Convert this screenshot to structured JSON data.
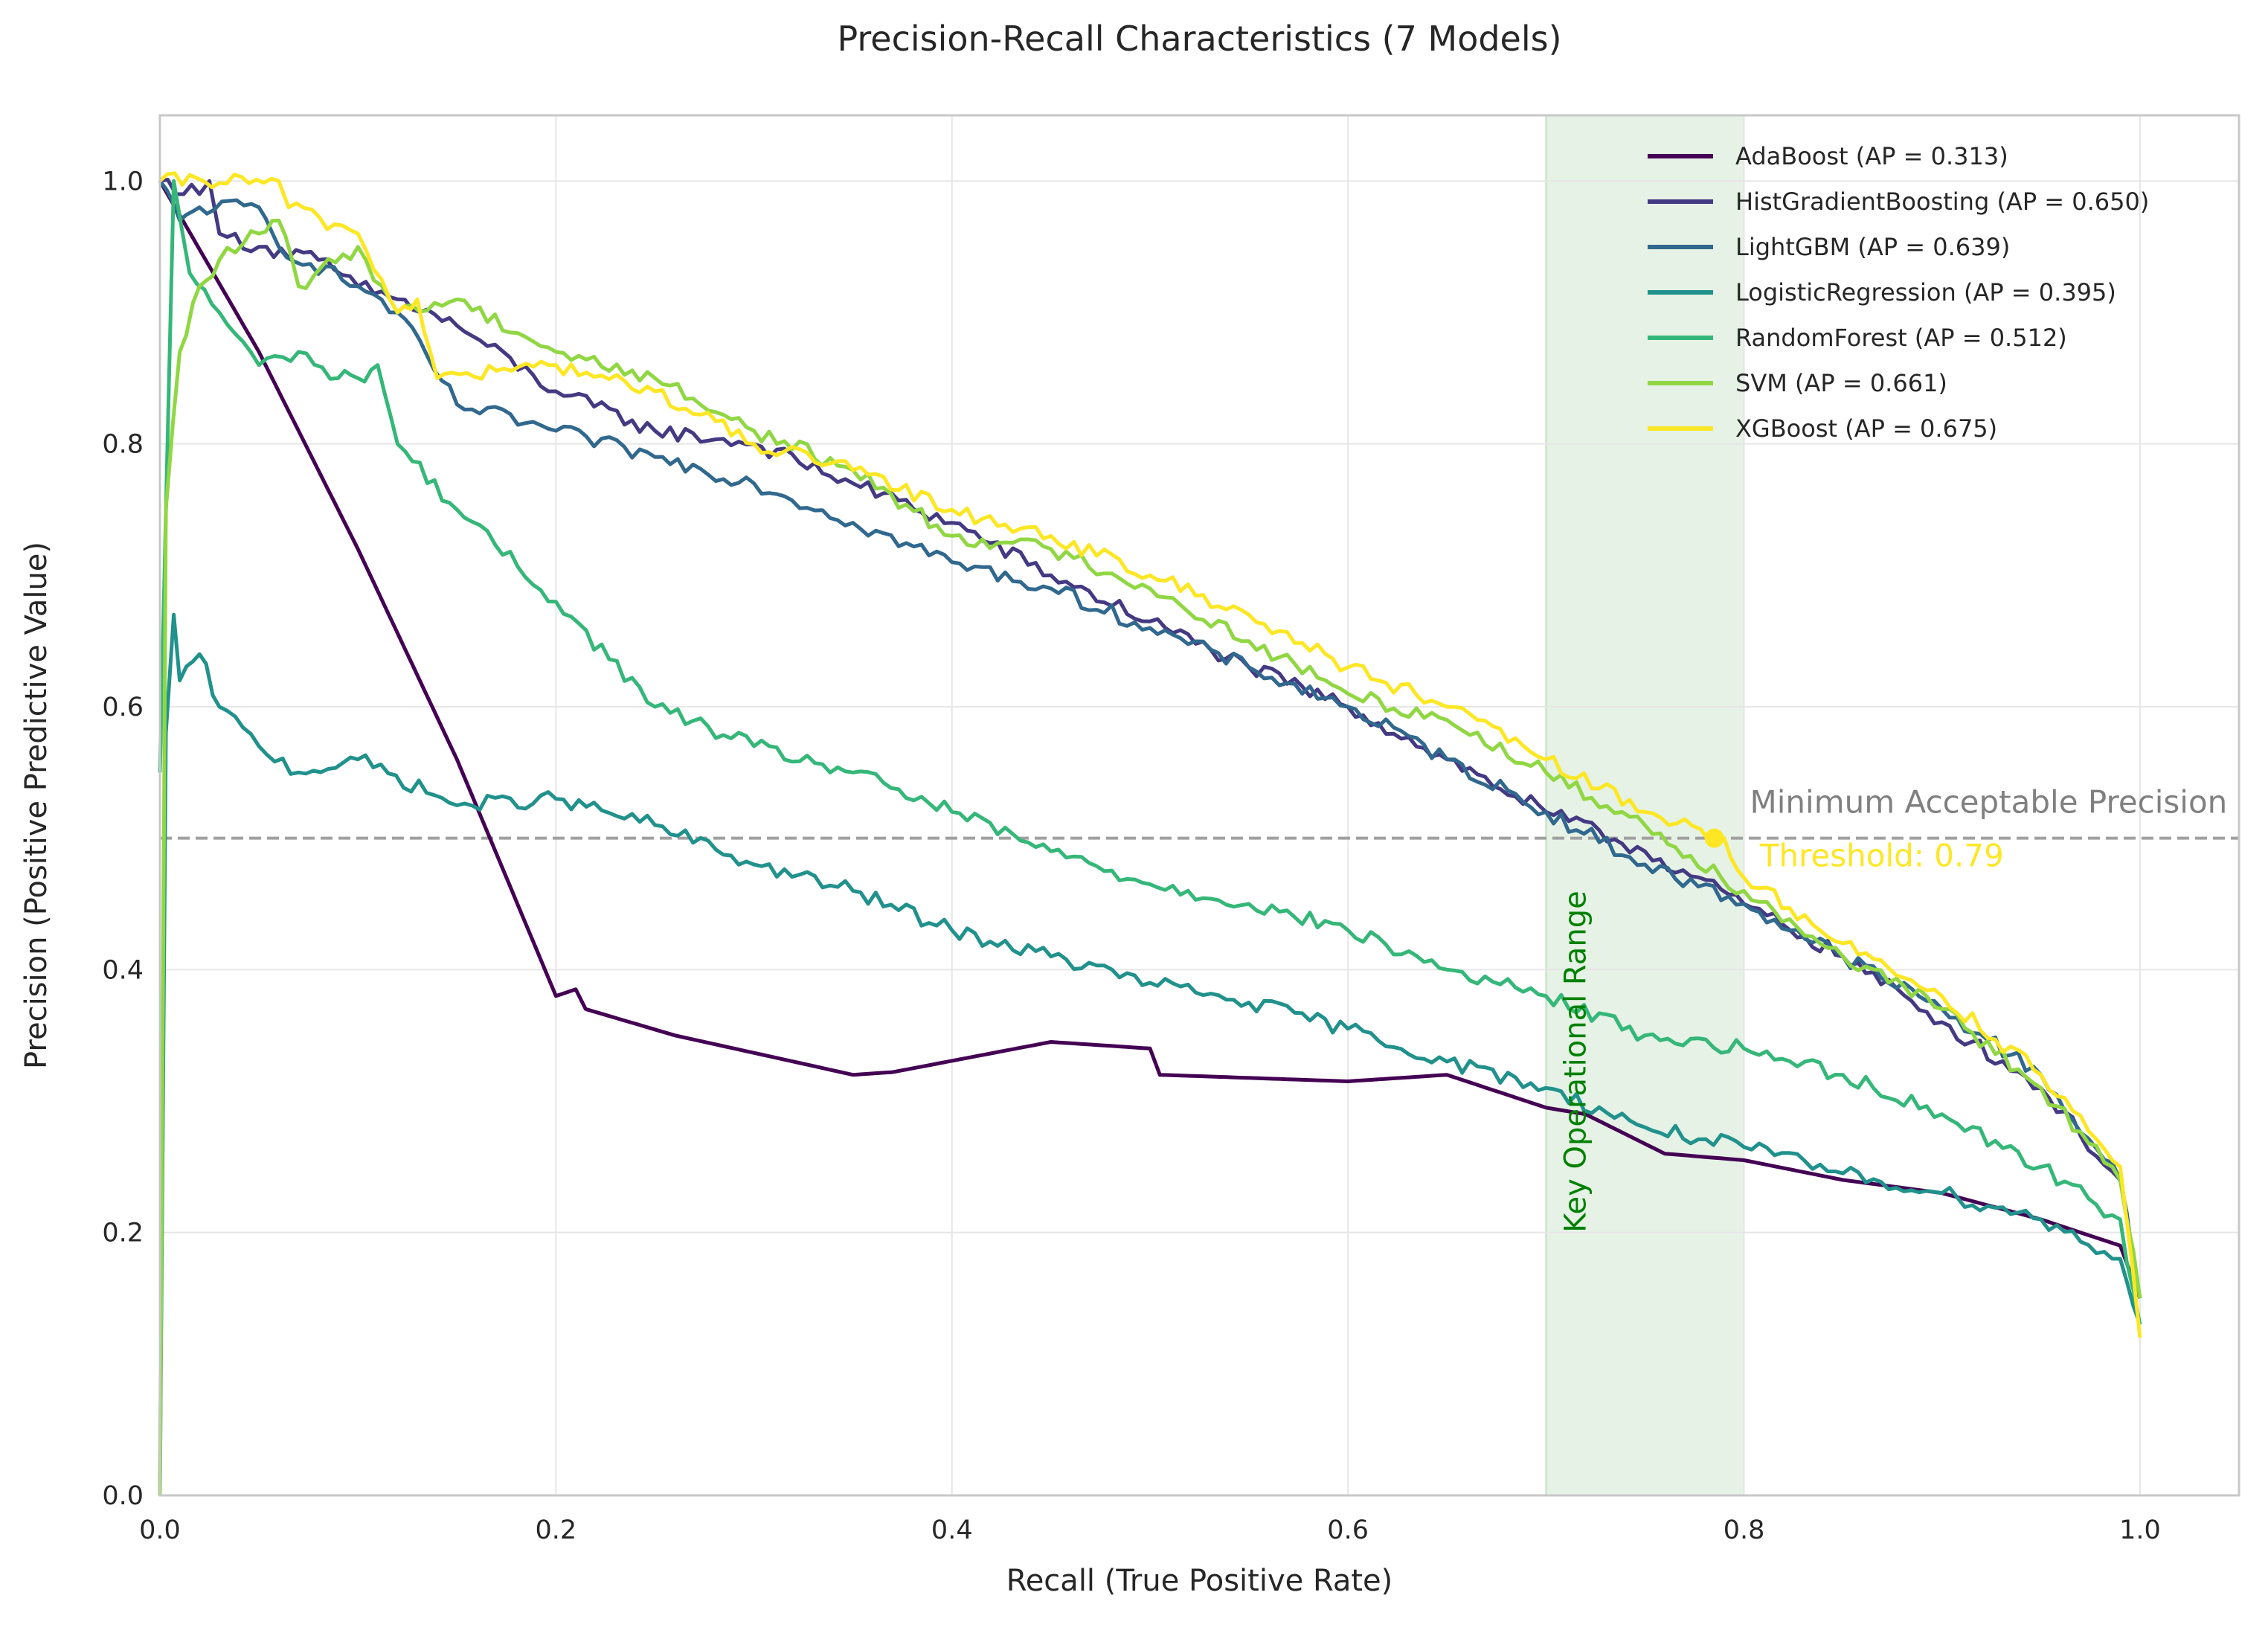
{
  "chart_data": {
    "type": "line",
    "title": "Precision-Recall Characteristics (7 Models)",
    "xlabel": "Recall (True Positive Rate)",
    "ylabel": "Precision (Positive Predictive Value)",
    "xlim": [
      0.0,
      1.05
    ],
    "ylim": [
      0.0,
      1.05
    ],
    "xticks": [
      0.0,
      0.2,
      0.4,
      0.6,
      0.8,
      1.0
    ],
    "yticks": [
      0.0,
      0.2,
      0.4,
      0.6,
      0.8,
      1.0
    ],
    "xtick_labels": [
      "0.0",
      "0.2",
      "0.4",
      "0.6",
      "0.8",
      "1.0"
    ],
    "ytick_labels": [
      "0.0",
      "0.2",
      "0.4",
      "0.6",
      "0.8",
      "1.0"
    ],
    "grid": true,
    "legend_position": "top-right",
    "series": [
      {
        "name": "AdaBoost (AP = 0.313)",
        "color": "#440154",
        "points": [
          [
            0.0,
            1.0
          ],
          [
            0.05,
            0.87
          ],
          [
            0.1,
            0.72
          ],
          [
            0.15,
            0.56
          ],
          [
            0.2,
            0.38
          ],
          [
            0.21,
            0.385
          ],
          [
            0.215,
            0.37
          ],
          [
            0.26,
            0.35
          ],
          [
            0.35,
            0.32
          ],
          [
            0.37,
            0.322
          ],
          [
            0.45,
            0.345
          ],
          [
            0.5,
            0.34
          ],
          [
            0.505,
            0.32
          ],
          [
            0.6,
            0.315
          ],
          [
            0.65,
            0.32
          ],
          [
            0.7,
            0.295
          ],
          [
            0.72,
            0.29
          ],
          [
            0.76,
            0.26
          ],
          [
            0.8,
            0.255
          ],
          [
            0.85,
            0.24
          ],
          [
            0.9,
            0.23
          ],
          [
            0.95,
            0.21
          ],
          [
            0.99,
            0.19
          ],
          [
            1.0,
            0.15
          ]
        ]
      },
      {
        "name": "HistGradientBoosting (AP = 0.650)",
        "color": "#443983",
        "points": [
          [
            0.0,
            1.0
          ],
          [
            0.02,
            0.99
          ],
          [
            0.025,
            1.0
          ],
          [
            0.03,
            0.96
          ],
          [
            0.05,
            0.95
          ],
          [
            0.08,
            0.94
          ],
          [
            0.1,
            0.92
          ],
          [
            0.12,
            0.91
          ],
          [
            0.15,
            0.89
          ],
          [
            0.2,
            0.84
          ],
          [
            0.25,
            0.81
          ],
          [
            0.3,
            0.8
          ],
          [
            0.35,
            0.77
          ],
          [
            0.4,
            0.74
          ],
          [
            0.45,
            0.7
          ],
          [
            0.5,
            0.665
          ],
          [
            0.55,
            0.63
          ],
          [
            0.6,
            0.6
          ],
          [
            0.65,
            0.56
          ],
          [
            0.7,
            0.52
          ],
          [
            0.75,
            0.49
          ],
          [
            0.8,
            0.45
          ],
          [
            0.85,
            0.41
          ],
          [
            0.9,
            0.36
          ],
          [
            0.95,
            0.31
          ],
          [
            0.99,
            0.24
          ],
          [
            1.0,
            0.15
          ]
        ]
      },
      {
        "name": "LightGBM (AP = 0.639)",
        "color": "#31688e",
        "points": [
          [
            0.0,
            1.0
          ],
          [
            0.01,
            0.97
          ],
          [
            0.02,
            0.98
          ],
          [
            0.05,
            0.98
          ],
          [
            0.06,
            0.95
          ],
          [
            0.1,
            0.92
          ],
          [
            0.12,
            0.9
          ],
          [
            0.15,
            0.83
          ],
          [
            0.2,
            0.81
          ],
          [
            0.25,
            0.79
          ],
          [
            0.3,
            0.77
          ],
          [
            0.35,
            0.74
          ],
          [
            0.4,
            0.71
          ],
          [
            0.45,
            0.69
          ],
          [
            0.5,
            0.66
          ],
          [
            0.55,
            0.63
          ],
          [
            0.6,
            0.6
          ],
          [
            0.65,
            0.56
          ],
          [
            0.7,
            0.52
          ],
          [
            0.75,
            0.48
          ],
          [
            0.8,
            0.45
          ],
          [
            0.85,
            0.41
          ],
          [
            0.9,
            0.37
          ],
          [
            0.95,
            0.32
          ],
          [
            0.99,
            0.24
          ],
          [
            1.0,
            0.15
          ]
        ]
      },
      {
        "name": "LogisticRegression (AP = 0.395)",
        "color": "#21918c",
        "points": [
          [
            0.0,
            0.0
          ],
          [
            0.003,
            0.58
          ],
          [
            0.007,
            0.67
          ],
          [
            0.01,
            0.62
          ],
          [
            0.02,
            0.64
          ],
          [
            0.03,
            0.6
          ],
          [
            0.05,
            0.57
          ],
          [
            0.07,
            0.55
          ],
          [
            0.1,
            0.56
          ],
          [
            0.15,
            0.525
          ],
          [
            0.2,
            0.53
          ],
          [
            0.25,
            0.51
          ],
          [
            0.3,
            0.48
          ],
          [
            0.35,
            0.46
          ],
          [
            0.4,
            0.43
          ],
          [
            0.45,
            0.41
          ],
          [
            0.5,
            0.39
          ],
          [
            0.55,
            0.375
          ],
          [
            0.6,
            0.355
          ],
          [
            0.65,
            0.33
          ],
          [
            0.7,
            0.31
          ],
          [
            0.75,
            0.28
          ],
          [
            0.8,
            0.265
          ],
          [
            0.85,
            0.245
          ],
          [
            0.9,
            0.23
          ],
          [
            0.95,
            0.21
          ],
          [
            0.99,
            0.18
          ],
          [
            1.0,
            0.13
          ]
        ]
      },
      {
        "name": "RandomForest (AP = 0.512)",
        "color": "#35b779",
        "points": [
          [
            0.0,
            0.55
          ],
          [
            0.007,
            1.0
          ],
          [
            0.015,
            0.93
          ],
          [
            0.03,
            0.9
          ],
          [
            0.05,
            0.86
          ],
          [
            0.07,
            0.87
          ],
          [
            0.09,
            0.85
          ],
          [
            0.1,
            0.85
          ],
          [
            0.11,
            0.86
          ],
          [
            0.12,
            0.8
          ],
          [
            0.15,
            0.75
          ],
          [
            0.2,
            0.68
          ],
          [
            0.25,
            0.6
          ],
          [
            0.3,
            0.57
          ],
          [
            0.35,
            0.55
          ],
          [
            0.4,
            0.52
          ],
          [
            0.45,
            0.49
          ],
          [
            0.5,
            0.465
          ],
          [
            0.55,
            0.45
          ],
          [
            0.6,
            0.43
          ],
          [
            0.65,
            0.4
          ],
          [
            0.7,
            0.38
          ],
          [
            0.75,
            0.35
          ],
          [
            0.8,
            0.34
          ],
          [
            0.85,
            0.32
          ],
          [
            0.9,
            0.29
          ],
          [
            0.95,
            0.25
          ],
          [
            0.99,
            0.21
          ],
          [
            1.0,
            0.13
          ]
        ]
      },
      {
        "name": "SVM (AP = 0.661)",
        "color": "#90d743",
        "points": [
          [
            0.0,
            0.0
          ],
          [
            0.003,
            0.75
          ],
          [
            0.01,
            0.87
          ],
          [
            0.02,
            0.92
          ],
          [
            0.03,
            0.94
          ],
          [
            0.05,
            0.96
          ],
          [
            0.06,
            0.97
          ],
          [
            0.07,
            0.92
          ],
          [
            0.1,
            0.95
          ],
          [
            0.12,
            0.9
          ],
          [
            0.15,
            0.91
          ],
          [
            0.2,
            0.87
          ],
          [
            0.25,
            0.85
          ],
          [
            0.3,
            0.81
          ],
          [
            0.35,
            0.78
          ],
          [
            0.4,
            0.73
          ],
          [
            0.45,
            0.72
          ],
          [
            0.5,
            0.69
          ],
          [
            0.55,
            0.65
          ],
          [
            0.6,
            0.61
          ],
          [
            0.65,
            0.59
          ],
          [
            0.7,
            0.55
          ],
          [
            0.75,
            0.51
          ],
          [
            0.8,
            0.46
          ],
          [
            0.85,
            0.41
          ],
          [
            0.9,
            0.37
          ],
          [
            0.95,
            0.31
          ],
          [
            0.99,
            0.24
          ],
          [
            1.0,
            0.15
          ]
        ]
      },
      {
        "name": "XGBoost (AP = 0.675)",
        "color": "#fde725",
        "points": [
          [
            0.0,
            1.0
          ],
          [
            0.06,
            1.0
          ],
          [
            0.065,
            0.98
          ],
          [
            0.1,
            0.96
          ],
          [
            0.12,
            0.9
          ],
          [
            0.13,
            0.91
          ],
          [
            0.14,
            0.85
          ],
          [
            0.2,
            0.86
          ],
          [
            0.25,
            0.84
          ],
          [
            0.3,
            0.8
          ],
          [
            0.35,
            0.78
          ],
          [
            0.4,
            0.75
          ],
          [
            0.45,
            0.73
          ],
          [
            0.5,
            0.7
          ],
          [
            0.55,
            0.67
          ],
          [
            0.6,
            0.63
          ],
          [
            0.65,
            0.6
          ],
          [
            0.7,
            0.56
          ],
          [
            0.75,
            0.52
          ],
          [
            0.79,
            0.5
          ],
          [
            0.8,
            0.47
          ],
          [
            0.85,
            0.42
          ],
          [
            0.9,
            0.38
          ],
          [
            0.95,
            0.32
          ],
          [
            0.99,
            0.25
          ],
          [
            1.0,
            0.12
          ]
        ]
      }
    ],
    "annotations": {
      "threshold_line": {
        "y": 0.5,
        "label": "Minimum Acceptable Precision",
        "color": "#a0a0a0"
      },
      "threshold_point": {
        "x": 0.785,
        "y": 0.5,
        "label": "Threshold: 0.79",
        "color": "#fde725"
      },
      "band": {
        "x0": 0.7,
        "x1": 0.8,
        "label": "Key Operational Range",
        "color": "#008000"
      }
    }
  }
}
